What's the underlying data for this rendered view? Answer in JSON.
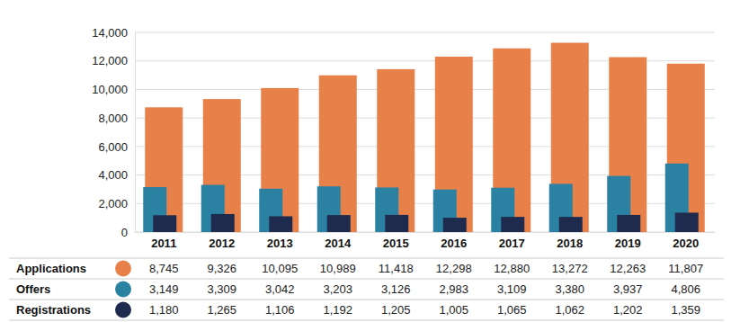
{
  "chart_data": {
    "type": "bar",
    "categories": [
      "2011",
      "2012",
      "2013",
      "2014",
      "2015",
      "2016",
      "2017",
      "2018",
      "2019",
      "2020"
    ],
    "series": [
      {
        "name": "Applications",
        "color": "#e8804a",
        "values": [
          8745,
          9326,
          10095,
          10989,
          11418,
          12298,
          12880,
          13272,
          12263,
          11807
        ],
        "value_labels": [
          "8,745",
          "9,326",
          "10,095",
          "10,989",
          "11,418",
          "12,298",
          "12,880",
          "13,272",
          "12,263",
          "11,807"
        ]
      },
      {
        "name": "Offers",
        "color": "#2b81a2",
        "values": [
          3149,
          3309,
          3042,
          3203,
          3126,
          2983,
          3109,
          3380,
          3937,
          4806
        ],
        "value_labels": [
          "3,149",
          "3,309",
          "3,042",
          "3,203",
          "3,126",
          "2,983",
          "3,109",
          "3,380",
          "3,937",
          "4,806"
        ]
      },
      {
        "name": "Registrations",
        "color": "#1f2b4e",
        "values": [
          1180,
          1265,
          1106,
          1192,
          1205,
          1005,
          1065,
          1062,
          1202,
          1359
        ],
        "value_labels": [
          "1,180",
          "1,265",
          "1,106",
          "1,192",
          "1,205",
          "1,005",
          "1,065",
          "1,062",
          "1,202",
          "1,359"
        ]
      }
    ],
    "ylim": [
      0,
      14000
    ],
    "yticks": [
      0,
      {
        "value": 2000,
        "label": "2,000"
      },
      {
        "value": 4000,
        "label": "4,000"
      },
      {
        "value": 6000,
        "label": "6,000"
      },
      {
        "value": 8000,
        "label": "8,000"
      },
      {
        "value": 10000,
        "label": "10,000"
      },
      {
        "value": 12000,
        "label": "12,000"
      },
      {
        "value": 14000,
        "label": "14,000"
      }
    ],
    "grid": true
  }
}
